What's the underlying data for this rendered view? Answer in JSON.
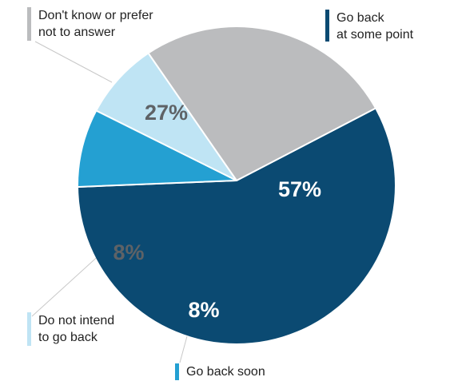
{
  "chart_data": {
    "type": "pie",
    "slices": [
      {
        "label": "Go back\nat some point",
        "value": 57,
        "value_label": "57%",
        "color": "#0b4a72",
        "text_color": "#ffffff"
      },
      {
        "label": "Go back soon",
        "value": 8,
        "value_label": "8%",
        "color": "#24a0d2",
        "text_color": "#ffffff"
      },
      {
        "label": "Do not intend\nto go back",
        "value": 8,
        "value_label": "8%",
        "color": "#bfe4f4",
        "text_color": "#5e6266"
      },
      {
        "label": "Don't know or prefer\nnot to answer",
        "value": 27,
        "value_label": "27%",
        "color": "#bbbcbe",
        "text_color": "#5e6266"
      }
    ]
  }
}
